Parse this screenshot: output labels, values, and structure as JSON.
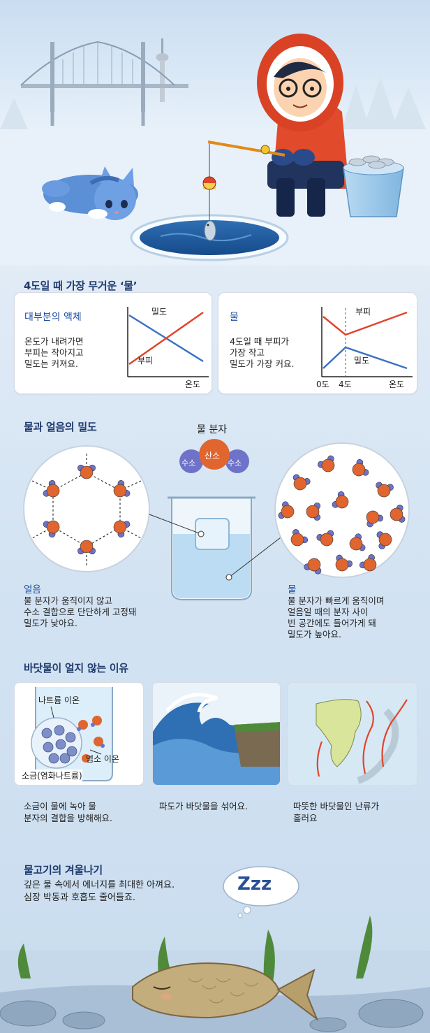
{
  "section1": {
    "title": "4도일 때 가장 무거운 ‘물’",
    "card_left": {
      "heading": "대부분의 액체",
      "text": "온도가 내려가면\n부피는 작아지고\n밀도는 커져요.",
      "label_density": "밀도",
      "label_volume": "부피",
      "x_label": "온도"
    },
    "card_right": {
      "heading": "물",
      "text": "4도일 때 부피가\n가장 작고\n밀도가 가장 커요.",
      "label_volume": "부피",
      "label_density": "밀도",
      "x_ticks": [
        "0도",
        "4도",
        "온도"
      ]
    }
  },
  "section2": {
    "title": "물과 얼음의 밀도",
    "molecule": {
      "title": "물 분자",
      "oxygen": "산소",
      "hydrogen_left": "수소",
      "hydrogen_right": "수소"
    },
    "ice": {
      "label": "얼음",
      "text": "물 분자가 움직이지 않고\n수소 결합으로 단단하게 고정돼\n밀도가 낮아요."
    },
    "water": {
      "label": "물",
      "text": "물 분자가 빠르게 움직이며\n얼음일 때의 분자 사이\n빈 공간에도 들어가게 돼\n밀도가 높아요."
    }
  },
  "section3": {
    "title": "바닷물이 얼지 않는 이유",
    "salt": {
      "sodium_label": "나트륨 이온",
      "chloride_label": "염소 이온",
      "salt_label": "소금(염화나트륨)",
      "caption": "소금이 물에 녹아 물\n분자의 결합을 방해해요."
    },
    "wave": {
      "caption": "파도가 바닷물을 섞어요."
    },
    "current": {
      "caption": "따뜻한 바닷물인 난류가\n흘러요"
    }
  },
  "section4": {
    "title": "물고기의 겨울나기",
    "text": "깊은 물 속에서 에너지를 최대한 아껴요.\n심장 박동과 호흡도 줄어들죠.",
    "dream_text": "Zzz"
  },
  "colors": {
    "title_navy": "#1f3b6e",
    "heading_blue": "#1f4fa0",
    "line_red": "#e0452b",
    "line_blue": "#3d72c4",
    "oxygen": "#e0652e",
    "hydrogen": "#6e72c9"
  }
}
